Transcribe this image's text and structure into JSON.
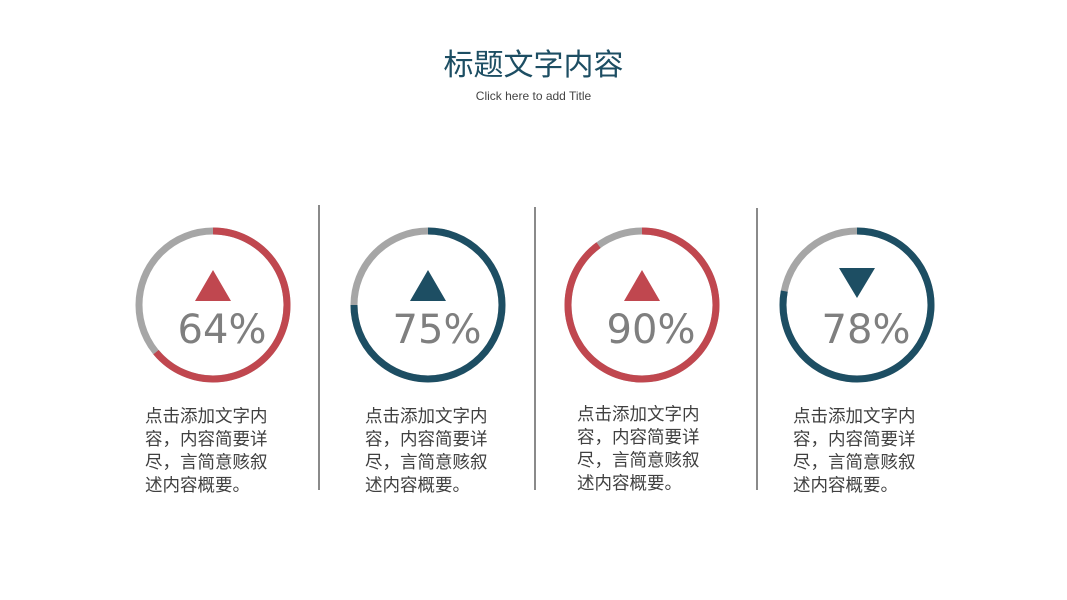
{
  "header": {
    "title": "标题文字内容",
    "subtitle": "Click here to add Title"
  },
  "colors": {
    "red": "#c0474f",
    "navy": "#1d4e63",
    "track": "#a6a6a6",
    "text": "#7f7f7f"
  },
  "chart_data": {
    "type": "pie",
    "items": [
      {
        "value": 64,
        "label": "64%",
        "color": "#c0474f",
        "arrow": "up",
        "text": "点击添加文字内容，内容简要详尽，言简意赅叙述内容概要。"
      },
      {
        "value": 75,
        "label": "75%",
        "color": "#1d4e63",
        "arrow": "up",
        "text": "点击添加文字内容，内容简要详尽，言简意赅叙述内容概要。"
      },
      {
        "value": 90,
        "label": "90%",
        "color": "#c0474f",
        "arrow": "up",
        "text": "点击添加文字内容，内容简要详尽，言简意赅叙述内容概要。"
      },
      {
        "value": 78,
        "label": "78%",
        "color": "#1d4e63",
        "arrow": "down",
        "text": "点击添加文字内容，内容简要详尽，言简意赅叙述内容概要。"
      }
    ]
  }
}
